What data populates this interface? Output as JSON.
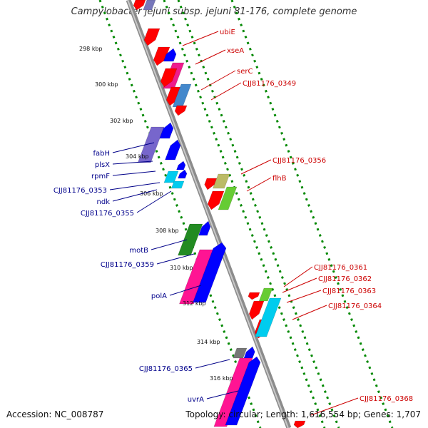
{
  "title": "Campylobacter jejuni subsp. jejuni 81-176, complete genome",
  "footer": {
    "accession": "Accession: NC_008787",
    "topology": "Topology: circular; Length: 1,616,554 bp; Genes: 1,707"
  },
  "colors": {
    "forward_label": "#cc0000",
    "reverse_label": "#00008b",
    "backbone": "#8c8c8c",
    "tick": "#008800",
    "red": "#ff0000",
    "blue": "#0000ff",
    "magenta": "#ff1493",
    "green": "#228b22"
  },
  "scale_ticks": [
    "298 kbp",
    "300 kbp",
    "302 kbp",
    "304 kbp",
    "306 kbp",
    "308 kbp",
    "310 kbp",
    "312 kbp",
    "314 kbp",
    "316 kbp"
  ],
  "forward_genes": [
    "ubiE",
    "xseA",
    "serC",
    "CJJ81176_0349",
    "CJJ81176_0356",
    "flhB",
    "CJJ81176_0361",
    "CJJ81176_0362",
    "CJJ81176_0363",
    "CJJ81176_0364",
    "CJJ81176_0368"
  ],
  "reverse_genes": [
    "fabH",
    "plsX",
    "rpmF",
    "CJJ81176_0353",
    "ndk",
    "CJJ81176_0355",
    "motB",
    "CJJ81176_0359",
    "polA",
    "CJJ81176_0365",
    "uvrA"
  ]
}
